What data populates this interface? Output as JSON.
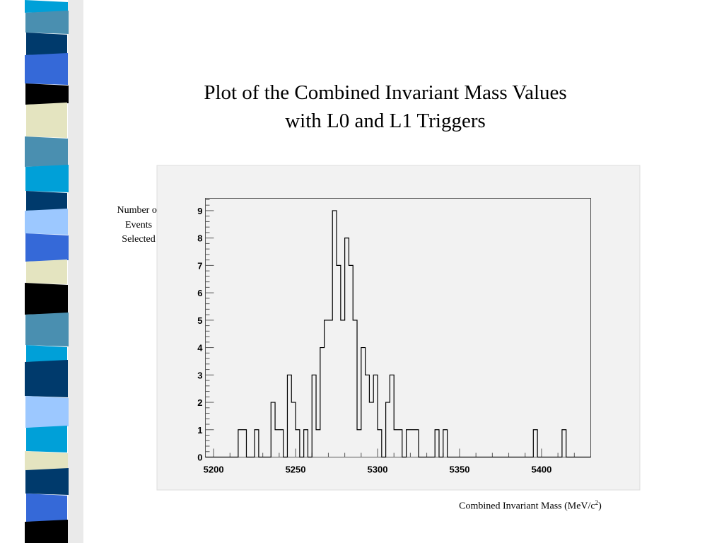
{
  "slide": {
    "title_line1": "Plot of the Combined Invariant Mass Values",
    "title_line2": "with L0 and L1 Triggers",
    "y_label_lines": [
      "Number of",
      "Events",
      "Selected"
    ],
    "x_label_main": "Combined Invariant Mass (MeV/c",
    "x_label_sup": "2",
    "x_label_close": ")"
  },
  "strip_colors": [
    "#00a0d8",
    "#4a8fb0",
    "#003a6c",
    "#3569d8",
    "#000000",
    "#e4e4c0",
    "#9cc8ff"
  ],
  "chart_data": {
    "type": "histogram",
    "xlim": [
      5195,
      5430
    ],
    "ylim": [
      0,
      9.45
    ],
    "x_ticks": [
      5200,
      5250,
      5300,
      5350,
      5400
    ],
    "y_ticks": [
      0,
      1,
      2,
      3,
      4,
      5,
      6,
      7,
      8,
      9
    ],
    "bin_width": 2.5,
    "bins": [
      {
        "x": 5215,
        "y": 1
      },
      {
        "x": 5217.5,
        "y": 1
      },
      {
        "x": 5225,
        "y": 1
      },
      {
        "x": 5235,
        "y": 2
      },
      {
        "x": 5237.5,
        "y": 1
      },
      {
        "x": 5240,
        "y": 1
      },
      {
        "x": 5245,
        "y": 3
      },
      {
        "x": 5247.5,
        "y": 2
      },
      {
        "x": 5250,
        "y": 1
      },
      {
        "x": 5252.5,
        "y": 0
      },
      {
        "x": 5255,
        "y": 1
      },
      {
        "x": 5257.5,
        "y": 0
      },
      {
        "x": 5260,
        "y": 3
      },
      {
        "x": 5262.5,
        "y": 1
      },
      {
        "x": 5265,
        "y": 4
      },
      {
        "x": 5267.5,
        "y": 5
      },
      {
        "x": 5270,
        "y": 5
      },
      {
        "x": 5272.5,
        "y": 9
      },
      {
        "x": 5275,
        "y": 7
      },
      {
        "x": 5277.5,
        "y": 5
      },
      {
        "x": 5280,
        "y": 8
      },
      {
        "x": 5282.5,
        "y": 7
      },
      {
        "x": 5285,
        "y": 5
      },
      {
        "x": 5287.5,
        "y": 1
      },
      {
        "x": 5290,
        "y": 4
      },
      {
        "x": 5292.5,
        "y": 3
      },
      {
        "x": 5295,
        "y": 2
      },
      {
        "x": 5297.5,
        "y": 3
      },
      {
        "x": 5300,
        "y": 1
      },
      {
        "x": 5302.5,
        "y": 0
      },
      {
        "x": 5305,
        "y": 2
      },
      {
        "x": 5307.5,
        "y": 3
      },
      {
        "x": 5310,
        "y": 1
      },
      {
        "x": 5312.5,
        "y": 1
      },
      {
        "x": 5317.5,
        "y": 1
      },
      {
        "x": 5320,
        "y": 1
      },
      {
        "x": 5322.5,
        "y": 1
      },
      {
        "x": 5335,
        "y": 1
      },
      {
        "x": 5340,
        "y": 1
      },
      {
        "x": 5395,
        "y": 1
      },
      {
        "x": 5412.5,
        "y": 1
      }
    ]
  }
}
